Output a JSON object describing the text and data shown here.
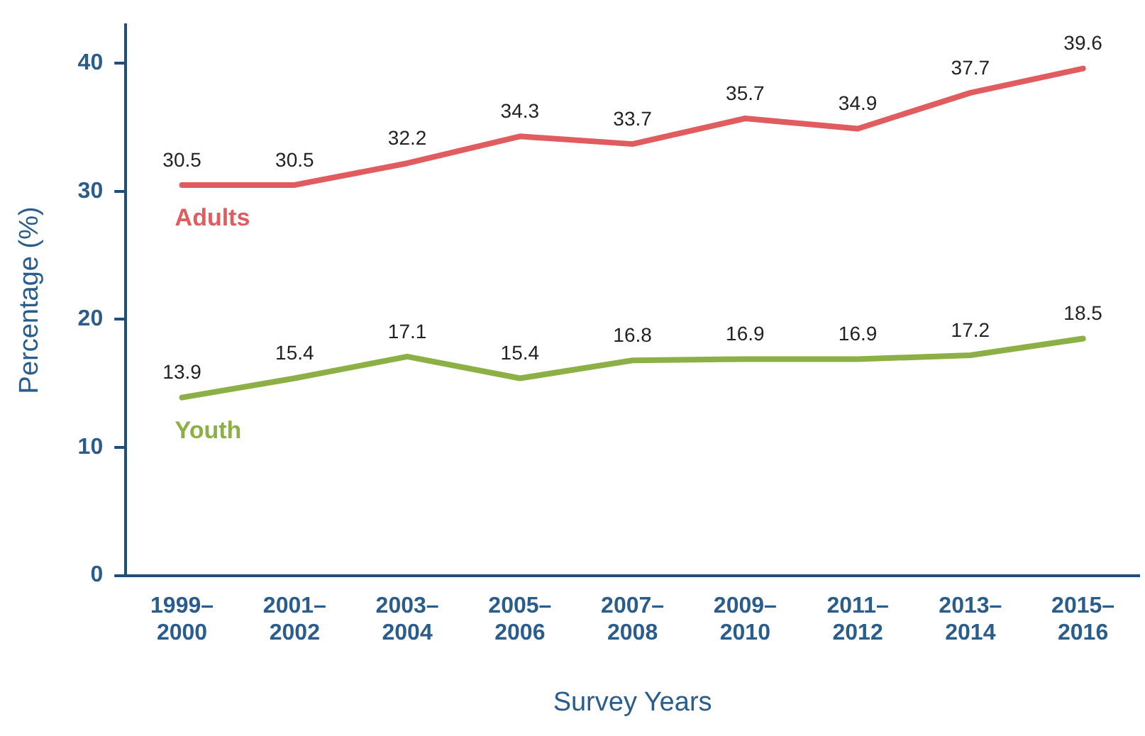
{
  "chart_data": {
    "type": "line",
    "xlabel": "Survey Years",
    "ylabel": "Percentage (%)",
    "categories": [
      "1999–2000",
      "2001–2002",
      "2003–2004",
      "2005–2006",
      "2007–2008",
      "2009–2010",
      "2011–2012",
      "2013–2014",
      "2015–2016"
    ],
    "series": [
      {
        "name": "Adults",
        "color": "#e05c5f",
        "values": [
          30.5,
          30.5,
          32.2,
          34.3,
          33.7,
          35.7,
          34.9,
          37.7,
          39.6
        ]
      },
      {
        "name": "Youth",
        "color": "#8cb045",
        "values": [
          13.9,
          15.4,
          17.1,
          15.4,
          16.8,
          16.9,
          16.9,
          17.2,
          18.5
        ]
      }
    ],
    "ylim": [
      0,
      43
    ],
    "yticks": [
      0,
      10,
      20,
      30,
      40
    ],
    "grid": false,
    "legend": false,
    "marker": "none",
    "line_style": "solid",
    "data_labels": true
  }
}
